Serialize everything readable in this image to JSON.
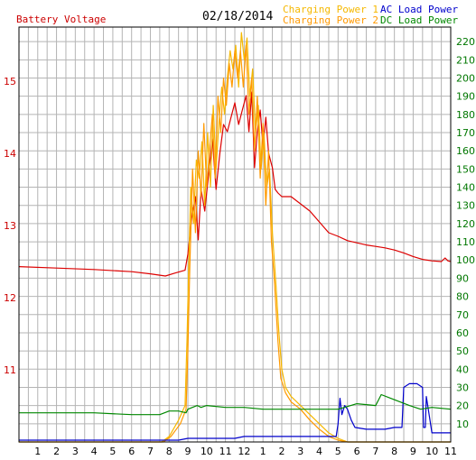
{
  "chart_data": {
    "type": "line",
    "date": "02/18/2014",
    "grid": true,
    "left_axis": {
      "title": "Battery Voltage",
      "ticks": [
        11,
        12,
        13,
        14,
        15
      ],
      "ylim": [
        10.0,
        15.75
      ],
      "color": "#cc0000"
    },
    "right_axis": {
      "ticks": [
        10,
        20,
        30,
        40,
        50,
        60,
        70,
        80,
        90,
        100,
        110,
        120,
        130,
        140,
        150,
        160,
        170,
        180,
        190,
        200,
        210,
        220
      ],
      "ylim": [
        0,
        228
      ],
      "color": "#007700"
    },
    "x_axis": {
      "tick_labels": [
        "1",
        "2",
        "3",
        "4",
        "5",
        "6",
        "7",
        "8",
        "9",
        "10",
        "11",
        "12",
        "1",
        "2",
        "3",
        "4",
        "5",
        "6",
        "7",
        "8",
        "9",
        "10",
        "11"
      ],
      "xlim": [
        0,
        23
      ]
    },
    "legend": [
      {
        "label": "Charging Power 1",
        "color": "#f5b800"
      },
      {
        "label": "Charging Power 2",
        "color": "#ff9900"
      },
      {
        "label": "AC Load Power",
        "color": "#0000cc"
      },
      {
        "label": "DC Load Power",
        "color": "#008800"
      }
    ],
    "series": [
      {
        "name": "Battery Voltage",
        "axis": "left",
        "color": "#dd0000",
        "points": [
          [
            0,
            12.43
          ],
          [
            2,
            12.41
          ],
          [
            4,
            12.39
          ],
          [
            6,
            12.36
          ],
          [
            7,
            12.33
          ],
          [
            7.8,
            12.3
          ],
          [
            8.3,
            12.34
          ],
          [
            8.85,
            12.38
          ],
          [
            9.0,
            12.6
          ],
          [
            9.2,
            13.1
          ],
          [
            9.4,
            13.4
          ],
          [
            9.55,
            12.8
          ],
          [
            9.7,
            13.5
          ],
          [
            9.9,
            13.2
          ],
          [
            10.1,
            13.7
          ],
          [
            10.3,
            14.2
          ],
          [
            10.5,
            13.5
          ],
          [
            10.7,
            14.0
          ],
          [
            10.9,
            14.4
          ],
          [
            11.1,
            14.3
          ],
          [
            11.3,
            14.5
          ],
          [
            11.5,
            14.7
          ],
          [
            11.7,
            14.4
          ],
          [
            11.9,
            14.6
          ],
          [
            12.1,
            14.8
          ],
          [
            12.25,
            14.3
          ],
          [
            12.4,
            14.85
          ],
          [
            12.55,
            13.8
          ],
          [
            12.7,
            14.3
          ],
          [
            12.85,
            14.6
          ],
          [
            13.0,
            14.1
          ],
          [
            13.15,
            14.5
          ],
          [
            13.3,
            14.0
          ],
          [
            13.5,
            13.8
          ],
          [
            13.65,
            13.5
          ],
          [
            13.8,
            13.45
          ],
          [
            14.0,
            13.4
          ],
          [
            14.5,
            13.4
          ],
          [
            15.0,
            13.3
          ],
          [
            15.5,
            13.2
          ],
          [
            16.0,
            13.05
          ],
          [
            16.5,
            12.9
          ],
          [
            17.0,
            12.85
          ],
          [
            17.5,
            12.79
          ],
          [
            18.0,
            12.76
          ],
          [
            18.5,
            12.73
          ],
          [
            19.0,
            12.71
          ],
          [
            19.5,
            12.69
          ],
          [
            20.0,
            12.66
          ],
          [
            20.5,
            12.62
          ],
          [
            21.0,
            12.57
          ],
          [
            21.5,
            12.53
          ],
          [
            22.0,
            12.51
          ],
          [
            22.5,
            12.5
          ],
          [
            22.7,
            12.55
          ],
          [
            22.85,
            12.51
          ],
          [
            23.0,
            12.5
          ]
        ]
      },
      {
        "name": "Charging Power 1",
        "axis": "right",
        "color": "#f5b800",
        "points": [
          [
            0,
            0
          ],
          [
            7.6,
            0
          ],
          [
            8.0,
            3
          ],
          [
            8.5,
            12
          ],
          [
            8.85,
            20
          ],
          [
            8.95,
            55
          ],
          [
            9.05,
            100
          ],
          [
            9.15,
            140
          ],
          [
            9.3,
            120
          ],
          [
            9.45,
            155
          ],
          [
            9.6,
            145
          ],
          [
            9.75,
            165
          ],
          [
            9.9,
            130
          ],
          [
            10.05,
            170
          ],
          [
            10.2,
            140
          ],
          [
            10.35,
            185
          ],
          [
            10.5,
            150
          ],
          [
            10.65,
            175
          ],
          [
            10.8,
            195
          ],
          [
            10.95,
            180
          ],
          [
            11.1,
            200
          ],
          [
            11.25,
            215
          ],
          [
            11.4,
            205
          ],
          [
            11.55,
            218
          ],
          [
            11.7,
            195
          ],
          [
            11.85,
            225
          ],
          [
            12.0,
            210
          ],
          [
            12.15,
            222
          ],
          [
            12.3,
            190
          ],
          [
            12.45,
            205
          ],
          [
            12.6,
            170
          ],
          [
            12.75,
            185
          ],
          [
            12.9,
            150
          ],
          [
            13.05,
            170
          ],
          [
            13.2,
            140
          ],
          [
            13.35,
            150
          ],
          [
            13.5,
            115
          ],
          [
            13.7,
            85
          ],
          [
            13.85,
            60
          ],
          [
            14.0,
            40
          ],
          [
            14.2,
            30
          ],
          [
            14.5,
            25
          ],
          [
            15.0,
            20
          ],
          [
            15.5,
            15
          ],
          [
            16.0,
            10
          ],
          [
            16.5,
            5
          ],
          [
            17.0,
            2
          ],
          [
            17.5,
            0
          ],
          [
            23,
            0
          ]
        ]
      },
      {
        "name": "Charging Power 2",
        "axis": "right",
        "color": "#ff9900",
        "points": [
          [
            0,
            0
          ],
          [
            7.7,
            0
          ],
          [
            8.1,
            3
          ],
          [
            8.6,
            10
          ],
          [
            8.9,
            18
          ],
          [
            9.0,
            50
          ],
          [
            9.1,
            95
          ],
          [
            9.25,
            150
          ],
          [
            9.4,
            115
          ],
          [
            9.55,
            160
          ],
          [
            9.7,
            135
          ],
          [
            9.85,
            175
          ],
          [
            10.0,
            140
          ],
          [
            10.15,
            160
          ],
          [
            10.3,
            180
          ],
          [
            10.45,
            145
          ],
          [
            10.6,
            190
          ],
          [
            10.75,
            170
          ],
          [
            10.9,
            200
          ],
          [
            11.05,
            185
          ],
          [
            11.2,
            208
          ],
          [
            11.35,
            195
          ],
          [
            11.5,
            215
          ],
          [
            11.65,
            200
          ],
          [
            11.8,
            215
          ],
          [
            11.95,
            195
          ],
          [
            12.1,
            218
          ],
          [
            12.25,
            180
          ],
          [
            12.4,
            200
          ],
          [
            12.55,
            160
          ],
          [
            12.7,
            190
          ],
          [
            12.85,
            145
          ],
          [
            13.0,
            175
          ],
          [
            13.15,
            130
          ],
          [
            13.3,
            160
          ],
          [
            13.45,
            110
          ],
          [
            13.6,
            90
          ],
          [
            13.8,
            55
          ],
          [
            13.95,
            35
          ],
          [
            14.2,
            27
          ],
          [
            14.5,
            22
          ],
          [
            15.0,
            18
          ],
          [
            15.5,
            12
          ],
          [
            16.0,
            7
          ],
          [
            16.5,
            3
          ],
          [
            17.0,
            1
          ],
          [
            17.5,
            0
          ],
          [
            23,
            0
          ]
        ]
      },
      {
        "name": "AC Load Power",
        "axis": "right",
        "color": "#0000cc",
        "points": [
          [
            0,
            1
          ],
          [
            8.5,
            1
          ],
          [
            9.0,
            2
          ],
          [
            11.5,
            2
          ],
          [
            12.0,
            3
          ],
          [
            16.0,
            3
          ],
          [
            16.9,
            3
          ],
          [
            17.0,
            10
          ],
          [
            17.1,
            24
          ],
          [
            17.2,
            15
          ],
          [
            17.35,
            20
          ],
          [
            17.5,
            18
          ],
          [
            17.7,
            12
          ],
          [
            17.9,
            8
          ],
          [
            18.5,
            7
          ],
          [
            19.5,
            7
          ],
          [
            20.0,
            8
          ],
          [
            20.4,
            8
          ],
          [
            20.5,
            30
          ],
          [
            20.8,
            32
          ],
          [
            21.2,
            32
          ],
          [
            21.5,
            30
          ],
          [
            21.55,
            8
          ],
          [
            21.65,
            8
          ],
          [
            21.7,
            25
          ],
          [
            21.85,
            15
          ],
          [
            22.0,
            5
          ],
          [
            23,
            5
          ]
        ]
      },
      {
        "name": "DC Load Power",
        "axis": "right",
        "color": "#008800",
        "points": [
          [
            0,
            16
          ],
          [
            2,
            16
          ],
          [
            4,
            16
          ],
          [
            6,
            15
          ],
          [
            7.5,
            15
          ],
          [
            8.0,
            17
          ],
          [
            8.5,
            17
          ],
          [
            8.9,
            16
          ],
          [
            9.0,
            18
          ],
          [
            9.5,
            20
          ],
          [
            9.7,
            19
          ],
          [
            10.0,
            20
          ],
          [
            11,
            19
          ],
          [
            12,
            19
          ],
          [
            13,
            18
          ],
          [
            14,
            18
          ],
          [
            15,
            18
          ],
          [
            16,
            18
          ],
          [
            17,
            18
          ],
          [
            18,
            21
          ],
          [
            19,
            20
          ],
          [
            19.3,
            26
          ],
          [
            19.8,
            24
          ],
          [
            20.3,
            22
          ],
          [
            20.8,
            20
          ],
          [
            21.4,
            18
          ],
          [
            22,
            19
          ],
          [
            23,
            18
          ]
        ]
      }
    ]
  }
}
